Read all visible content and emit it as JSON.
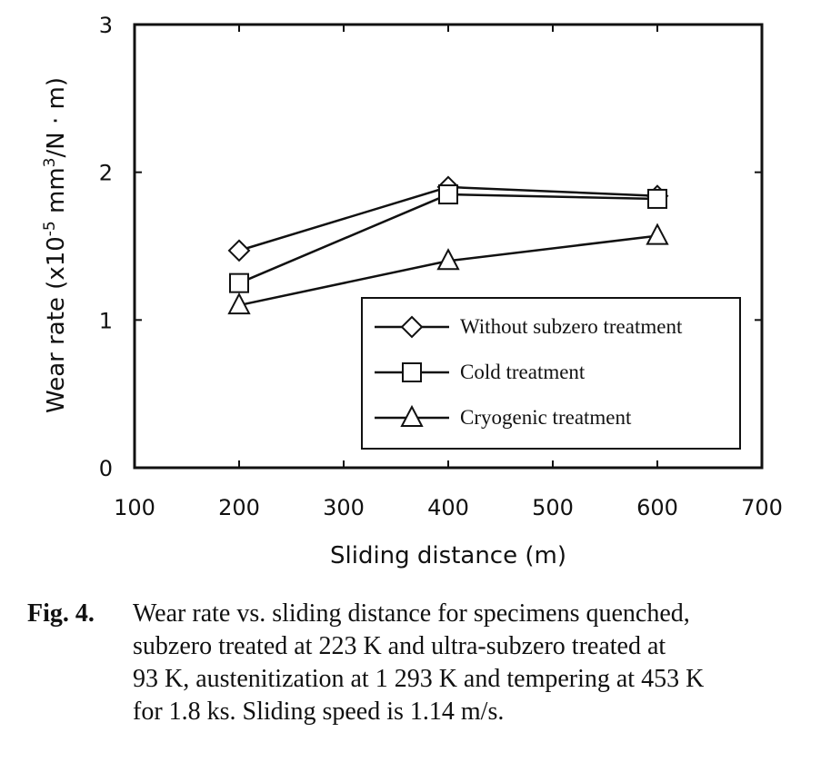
{
  "chart_data": {
    "type": "line",
    "title": "",
    "xlabel": "Sliding distance (m)",
    "ylabel": "Wear rate (x10",
    "ylabel_exp": "-5",
    "ylabel_unit": "mm",
    "ylabel_unit_exp": "3",
    "ylabel_unit_tail": "/N · m)",
    "xlim": [
      100,
      700
    ],
    "ylim": [
      0,
      3
    ],
    "xticks": [
      100,
      200,
      300,
      400,
      500,
      600,
      700
    ],
    "yticks": [
      0,
      1,
      2,
      3
    ],
    "grid": false,
    "legend_position": "bottom-right",
    "series": [
      {
        "name": "Without subzero treatment",
        "marker": "diamond",
        "x": [
          200,
          400,
          600
        ],
        "y": [
          1.47,
          1.9,
          1.84
        ]
      },
      {
        "name": "Cold treatment",
        "marker": "square",
        "x": [
          200,
          400,
          600
        ],
        "y": [
          1.25,
          1.85,
          1.82
        ]
      },
      {
        "name": "Cryogenic treatment",
        "marker": "triangle",
        "x": [
          200,
          400,
          600
        ],
        "y": [
          1.1,
          1.4,
          1.57
        ]
      }
    ]
  },
  "caption": {
    "label": "Fig. 4.",
    "lines": [
      "Wear rate vs. sliding distance for specimens quenched,",
      "subzero treated at 223 K and ultra-subzero treated at",
      "93 K, austenitization at 1 293 K and tempering at 453 K",
      "for 1.8 ks. Sliding speed is 1.14 m/s."
    ]
  }
}
